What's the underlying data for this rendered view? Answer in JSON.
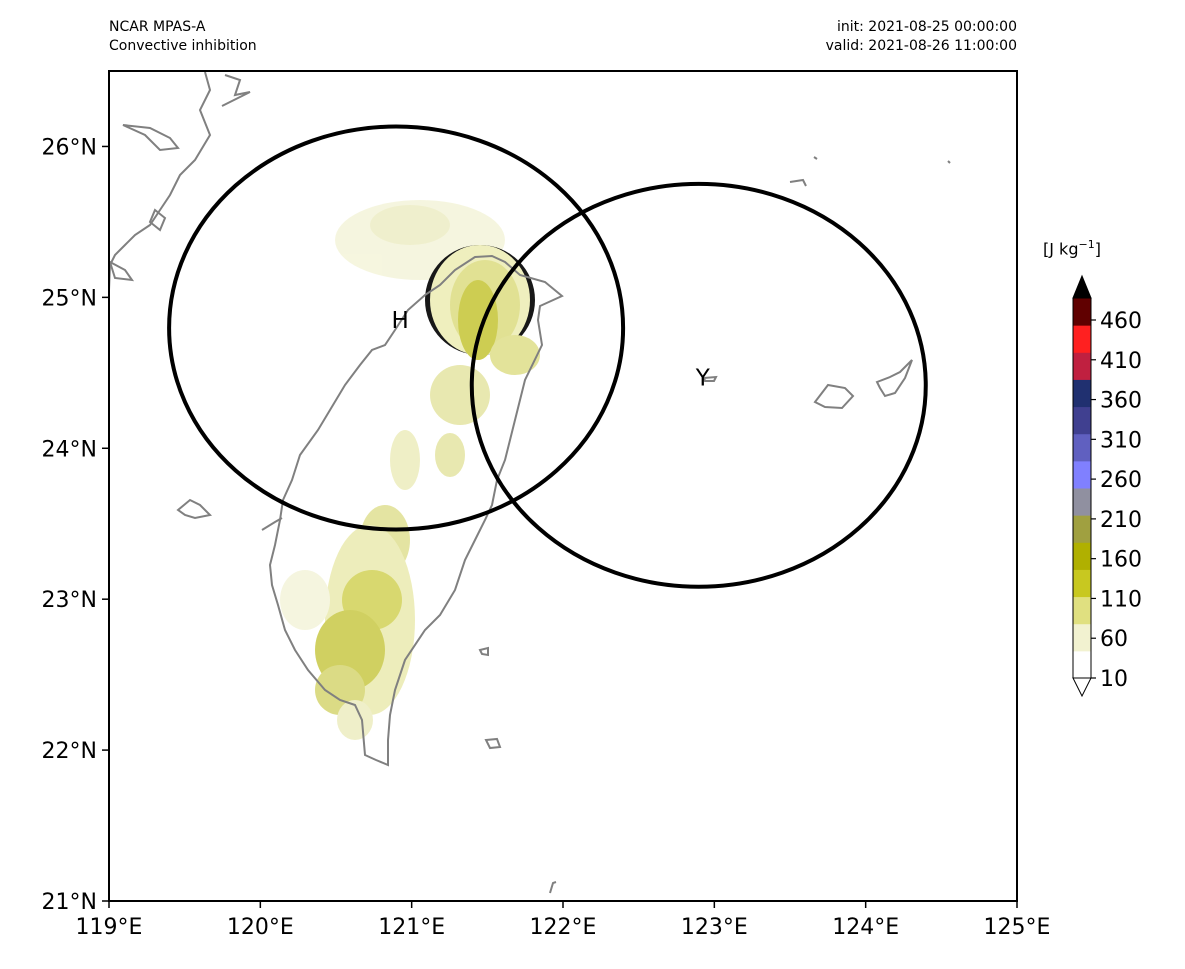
{
  "header": {
    "model": "NCAR MPAS-A",
    "field": "Convective inhibition",
    "init": "init: 2021-08-25 00:00:00",
    "valid": "valid: 2021-08-26 11:00:00"
  },
  "map": {
    "lon_range": [
      119,
      125
    ],
    "lat_range": [
      21,
      26.5
    ],
    "xticks": [
      "119°E",
      "120°E",
      "121°E",
      "122°E",
      "123°E",
      "124°E",
      "125°E"
    ],
    "yticks": [
      "21°N",
      "22°N",
      "23°N",
      "24°N",
      "25°N",
      "26°N"
    ],
    "coastline_color": "#808080",
    "markers": [
      {
        "label": "H",
        "lon": 120.95,
        "lat": 24.85,
        "radius_deg": 1.5
      },
      {
        "label": "Y",
        "lon": 122.95,
        "lat": 24.47,
        "radius_deg": 1.5
      }
    ],
    "filled_regions_color": "#b8b800"
  },
  "colorbar": {
    "unit": "J kg",
    "unit_exp": "−1",
    "ticks": [
      "10",
      "60",
      "110",
      "160",
      "210",
      "260",
      "310",
      "360",
      "410",
      "460"
    ],
    "colors": [
      "#ffffff",
      "#f2f2d0",
      "#e0e080",
      "#c8c820",
      "#b0b000",
      "#a0a040",
      "#9090a0",
      "#8080ff",
      "#6060c0",
      "#404090",
      "#203070",
      "#c02040",
      "#ff2020",
      "#600000",
      "#000000"
    ]
  }
}
